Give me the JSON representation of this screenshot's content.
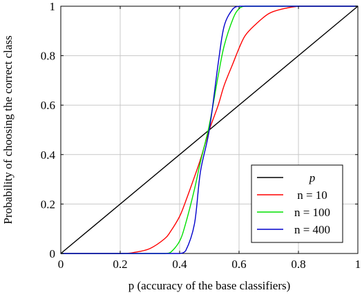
{
  "chart_data": {
    "type": "line",
    "xlabel": "p (accuracy of the base classifiers)",
    "ylabel": "Probability of choosing the correct class",
    "xlim": [
      0,
      1
    ],
    "ylim": [
      0,
      1
    ],
    "x_ticks": [
      "0",
      "0.2",
      "0.4",
      "0.6",
      "0.8",
      "1"
    ],
    "y_ticks": [
      "0",
      "0.2",
      "0.4",
      "0.6",
      "0.8",
      "1"
    ],
    "grid": true,
    "legend_position": "bottom-right",
    "x": [
      0,
      0.2,
      0.25,
      0.3,
      0.35,
      0.37,
      0.4,
      0.42,
      0.45,
      0.47,
      0.5,
      0.53,
      0.55,
      0.58,
      0.6,
      0.62,
      0.65,
      0.7,
      0.75,
      0.8,
      0.85,
      0.9,
      1
    ],
    "series": [
      {
        "name": "p",
        "color": "#000000",
        "values": [
          0,
          0.2,
          0.25,
          0.3,
          0.35,
          0.37,
          0.4,
          0.42,
          0.45,
          0.47,
          0.5,
          0.53,
          0.55,
          0.58,
          0.6,
          0.62,
          0.65,
          0.7,
          0.75,
          0.8,
          0.85,
          0.9,
          1
        ]
      },
      {
        "name": "n = 10",
        "color": "#ff0000",
        "values": [
          0,
          0.0,
          0.005,
          0.02,
          0.06,
          0.09,
          0.15,
          0.21,
          0.31,
          0.38,
          0.5,
          0.6,
          0.68,
          0.77,
          0.83,
          0.88,
          0.92,
          0.97,
          0.99,
          1.0,
          1.0,
          1.0,
          1.0
        ]
      },
      {
        "name": "n = 100",
        "color": "#00e000",
        "values": [
          0,
          0,
          0,
          0,
          0.0,
          0.005,
          0.05,
          0.12,
          0.26,
          0.37,
          0.52,
          0.72,
          0.84,
          0.95,
          0.99,
          1.0,
          1.0,
          1.0,
          1.0,
          1.0,
          1.0,
          1.0,
          1.0
        ]
      },
      {
        "name": "n = 400",
        "color": "#0000cc",
        "values": [
          0,
          0,
          0,
          0,
          0,
          0,
          0.0,
          0.01,
          0.12,
          0.33,
          0.5,
          0.77,
          0.92,
          0.99,
          1.0,
          1.0,
          1.0,
          1.0,
          1.0,
          1.0,
          1.0,
          1.0,
          1.0
        ]
      }
    ]
  }
}
